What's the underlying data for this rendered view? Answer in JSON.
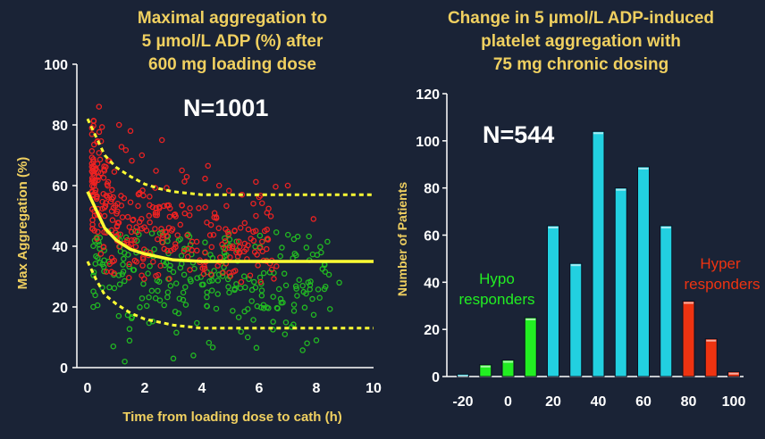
{
  "left": {
    "title_lines": [
      "Maximal aggregation to",
      "5 µmol/L ADP (%) after",
      "600 mg loading dose"
    ],
    "n_label": "N=1001",
    "chart_data": {
      "type": "scatter",
      "title": "Maximal aggregation to 5 µmol/L ADP (%) after 600 mg loading dose",
      "xlabel": "Time from loading dose to cath (h)",
      "ylabel": "Max Aggregation (%)",
      "xlim": [
        0,
        10
      ],
      "ylim": [
        0,
        100
      ],
      "xticks": [
        0,
        2,
        4,
        6,
        8,
        10
      ],
      "yticks": [
        0,
        20,
        40,
        60,
        80,
        100
      ],
      "colors": {
        "hyper": "#ee2222",
        "hypo": "#22bb22",
        "fit": "#ffff33"
      },
      "fit_line": {
        "x": [
          0,
          0.3,
          0.6,
          1.0,
          1.5,
          2.0,
          2.5,
          3.0,
          4.0,
          5.0,
          6.0,
          8.0,
          10.0
        ],
        "y": [
          58,
          52,
          46,
          42,
          39,
          37.5,
          36.5,
          35.5,
          35,
          35,
          35,
          35,
          35
        ]
      },
      "upper_band": {
        "x": [
          0,
          0.3,
          0.6,
          1.0,
          1.5,
          2.0,
          2.5,
          3.0,
          3.5,
          4.0,
          6.0,
          8.0,
          10.0
        ],
        "y": [
          82,
          76,
          70,
          66,
          63,
          60.5,
          59,
          58,
          57.5,
          57,
          57,
          57,
          57
        ]
      },
      "lower_band": {
        "x": [
          0,
          0.3,
          0.6,
          1.0,
          1.5,
          2.0,
          2.5,
          3.0,
          3.5,
          4.0,
          6.0,
          8.0,
          10.0
        ],
        "y": [
          35,
          29,
          24,
          21,
          18,
          16,
          15,
          14,
          13.5,
          13,
          13,
          13,
          13
        ]
      },
      "scatter": {
        "hyper_count": 340,
        "hypo_count": 300,
        "extra_points": [
          [
            0.4,
            86
          ],
          [
            1.1,
            80
          ],
          [
            1.5,
            78
          ],
          [
            1.9,
            70
          ],
          [
            2.6,
            75
          ],
          [
            3.3,
            65
          ],
          [
            4.6,
            60
          ],
          [
            5.4,
            57
          ],
          [
            7.0,
            60
          ],
          [
            0.9,
            7
          ],
          [
            1.3,
            2
          ],
          [
            3.0,
            3
          ],
          [
            3.7,
            4
          ],
          [
            5.6,
            10
          ],
          [
            6.9,
            11
          ],
          [
            8.0,
            9
          ],
          [
            8.8,
            28
          ],
          [
            7.9,
            49
          ],
          [
            5.2,
            38
          ],
          [
            0.2,
            20
          ]
        ]
      }
    }
  },
  "right": {
    "title_lines": [
      "Change in 5 µmol/L ADP-induced",
      "platelet aggregation with",
      "75 mg chronic dosing"
    ],
    "n_label": "N=544",
    "hypo_label_lines": [
      "Hypo",
      "responders"
    ],
    "hyper_label_lines": [
      "Hyper",
      "responders"
    ],
    "chart_data": {
      "type": "bar",
      "title": "Change in 5 µmol/L ADP-induced platelet aggregation with 75 mg chronic dosing",
      "xlabel": "",
      "ylabel": "Number of Patients",
      "ylim": [
        0,
        120
      ],
      "yticks": [
        0,
        20,
        40,
        60,
        80,
        100,
        120
      ],
      "xticks": [
        -20,
        0,
        20,
        40,
        60,
        80,
        100
      ],
      "xtick_labels": [
        "-20",
        "0",
        "20",
        "40",
        "60",
        "80",
        "100"
      ],
      "x": [
        -20,
        -10,
        0,
        10,
        20,
        30,
        40,
        50,
        60,
        70,
        80,
        90,
        100
      ],
      "values": [
        1,
        5,
        7,
        25,
        64,
        48,
        104,
        80,
        89,
        64,
        32,
        16,
        2
      ],
      "bar_groups": [
        "normal",
        "hypo",
        "hypo",
        "hypo",
        "normal",
        "normal",
        "normal",
        "normal",
        "normal",
        "normal",
        "hyper",
        "hyper",
        "hyper"
      ],
      "colors": {
        "normal": "#22d0e0",
        "hypo": "#22ee22",
        "hyper": "#ee3311"
      }
    }
  }
}
